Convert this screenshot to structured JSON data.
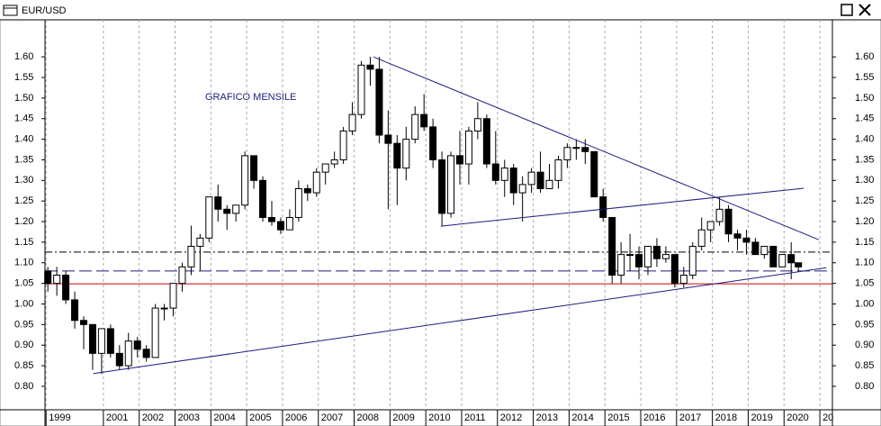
{
  "window_title": "EUR/USD",
  "chart_data": {
    "type": "candlestick",
    "annotation": "GRAFICO MENSILE",
    "x": [
      1999.45,
      1999.7,
      1999.95,
      2000.2,
      2000.45,
      2000.7,
      2000.95,
      2001.2,
      2001.45,
      2001.7,
      2001.95,
      2002.2,
      2002.45,
      2002.7,
      2002.95,
      2003.2,
      2003.45,
      2003.7,
      2003.95,
      2004.2,
      2004.45,
      2004.7,
      2004.95,
      2005.2,
      2005.45,
      2005.7,
      2005.95,
      2006.2,
      2006.45,
      2006.7,
      2006.95,
      2007.2,
      2007.45,
      2007.7,
      2007.95,
      2008.2,
      2008.45,
      2008.7,
      2008.95,
      2009.2,
      2009.45,
      2009.7,
      2009.95,
      2010.2,
      2010.45,
      2010.7,
      2010.95,
      2011.2,
      2011.45,
      2011.7,
      2011.95,
      2012.2,
      2012.45,
      2012.7,
      2012.95,
      2013.2,
      2013.45,
      2013.7,
      2013.95,
      2014.2,
      2014.45,
      2014.7,
      2014.95,
      2015.2,
      2015.45,
      2015.7,
      2015.95,
      2016.2,
      2016.45,
      2016.7,
      2016.95,
      2017.2,
      2017.45,
      2017.7,
      2017.95,
      2018.2,
      2018.45,
      2018.7,
      2018.95,
      2019.2,
      2019.45,
      2019.7,
      2019.95,
      2020.2,
      2020.4
    ],
    "open": [
      1.08,
      1.05,
      1.07,
      1.01,
      0.96,
      0.95,
      0.88,
      0.94,
      0.88,
      0.85,
      0.91,
      0.89,
      0.87,
      0.99,
      0.99,
      1.05,
      1.09,
      1.14,
      1.16,
      1.26,
      1.23,
      1.22,
      1.24,
      1.36,
      1.3,
      1.21,
      1.2,
      1.18,
      1.21,
      1.28,
      1.27,
      1.32,
      1.34,
      1.35,
      1.42,
      1.46,
      1.58,
      1.57,
      1.41,
      1.39,
      1.33,
      1.4,
      1.46,
      1.43,
      1.35,
      1.22,
      1.36,
      1.34,
      1.42,
      1.45,
      1.34,
      1.3,
      1.33,
      1.27,
      1.29,
      1.32,
      1.28,
      1.3,
      1.35,
      1.38,
      1.38,
      1.37,
      1.26,
      1.21,
      1.07,
      1.12,
      1.12,
      1.09,
      1.14,
      1.11,
      1.12,
      1.05,
      1.07,
      1.14,
      1.18,
      1.2,
      1.23,
      1.17,
      1.16,
      1.15,
      1.12,
      1.14,
      1.09,
      1.12,
      1.1
    ],
    "high": [
      1.09,
      1.09,
      1.08,
      1.03,
      0.97,
      0.95,
      0.94,
      0.95,
      0.9,
      0.93,
      0.92,
      0.9,
      1.0,
      1.0,
      1.05,
      1.1,
      1.19,
      1.17,
      1.26,
      1.29,
      1.24,
      1.24,
      1.37,
      1.36,
      1.31,
      1.25,
      1.21,
      1.23,
      1.3,
      1.29,
      1.33,
      1.34,
      1.37,
      1.43,
      1.49,
      1.59,
      1.6,
      1.6,
      1.47,
      1.41,
      1.43,
      1.48,
      1.51,
      1.45,
      1.37,
      1.37,
      1.42,
      1.43,
      1.49,
      1.46,
      1.42,
      1.35,
      1.34,
      1.31,
      1.33,
      1.37,
      1.34,
      1.36,
      1.39,
      1.4,
      1.4,
      1.37,
      1.28,
      1.21,
      1.15,
      1.17,
      1.14,
      1.14,
      1.16,
      1.14,
      1.12,
      1.09,
      1.15,
      1.21,
      1.2,
      1.26,
      1.24,
      1.18,
      1.18,
      1.16,
      1.14,
      1.14,
      1.12,
      1.15,
      1.1
    ],
    "low": [
      1.03,
      1.02,
      1.0,
      0.94,
      0.89,
      0.84,
      0.83,
      0.87,
      0.84,
      0.84,
      0.87,
      0.86,
      0.87,
      0.96,
      0.97,
      1.03,
      1.07,
      1.08,
      1.15,
      1.2,
      1.18,
      1.2,
      1.23,
      1.28,
      1.2,
      1.19,
      1.17,
      1.18,
      1.2,
      1.25,
      1.26,
      1.29,
      1.33,
      1.34,
      1.41,
      1.45,
      1.53,
      1.39,
      1.23,
      1.24,
      1.3,
      1.39,
      1.42,
      1.33,
      1.19,
      1.21,
      1.29,
      1.29,
      1.4,
      1.33,
      1.29,
      1.26,
      1.24,
      1.2,
      1.27,
      1.27,
      1.28,
      1.28,
      1.33,
      1.35,
      1.34,
      1.26,
      1.2,
      1.05,
      1.05,
      1.08,
      1.06,
      1.07,
      1.09,
      1.1,
      1.04,
      1.04,
      1.06,
      1.13,
      1.15,
      1.19,
      1.15,
      1.13,
      1.12,
      1.12,
      1.11,
      1.09,
      1.09,
      1.06,
      1.08
    ],
    "close": [
      1.05,
      1.07,
      1.01,
      0.96,
      0.95,
      0.88,
      0.94,
      0.88,
      0.85,
      0.91,
      0.89,
      0.87,
      0.99,
      0.99,
      1.05,
      1.09,
      1.14,
      1.16,
      1.26,
      1.23,
      1.22,
      1.24,
      1.36,
      1.3,
      1.21,
      1.2,
      1.18,
      1.21,
      1.28,
      1.27,
      1.32,
      1.34,
      1.35,
      1.42,
      1.46,
      1.58,
      1.57,
      1.41,
      1.39,
      1.33,
      1.4,
      1.46,
      1.43,
      1.35,
      1.22,
      1.36,
      1.34,
      1.42,
      1.45,
      1.34,
      1.3,
      1.33,
      1.27,
      1.29,
      1.32,
      1.28,
      1.3,
      1.35,
      1.38,
      1.38,
      1.37,
      1.26,
      1.21,
      1.07,
      1.12,
      1.12,
      1.09,
      1.14,
      1.11,
      1.12,
      1.05,
      1.07,
      1.14,
      1.18,
      1.2,
      1.23,
      1.17,
      1.16,
      1.15,
      1.12,
      1.14,
      1.09,
      1.12,
      1.1,
      1.09
    ],
    "lines": [
      {
        "x1": 2008.54,
        "y1": 1.6,
        "x2": 2020.97,
        "y2": 1.156,
        "color": "#1c1c80",
        "style": "solid"
      },
      {
        "x1": 2010.42,
        "y1": 1.189,
        "x2": 2020.55,
        "y2": 1.281,
        "color": "#1c1c80",
        "style": "solid"
      },
      {
        "x1": 2000.72,
        "y1": 0.831,
        "x2": 2021.18,
        "y2": 1.088,
        "color": "#1c1c80",
        "style": "solid"
      }
    ],
    "levels": [
      {
        "value": 1.126,
        "color": "#000000",
        "style": "dashdot"
      },
      {
        "value": 1.08,
        "color": "#1c1c80",
        "style": "dashed"
      },
      {
        "value": 1.049,
        "color": "#cc0000",
        "style": "solid"
      }
    ],
    "xlim": [
      1999.37,
      2021.35
    ],
    "xticks": [
      {
        "value": 1999.4,
        "label": "1999"
      },
      2001,
      2002,
      2003,
      2004,
      2005,
      2006,
      2007,
      2008,
      2009,
      2010,
      2011,
      2012,
      2013,
      2014,
      2015,
      2016,
      2017,
      2018,
      2019,
      2020,
      {
        "value": 2021,
        "label": "20"
      }
    ],
    "ylim": [
      0.743,
      1.69
    ],
    "yticks": [
      {
        "value": 0.8,
        "label": "0.80"
      },
      {
        "value": 0.85,
        "label": "0.85"
      },
      {
        "value": 0.9,
        "label": "0.90"
      },
      {
        "value": 0.95,
        "label": "0.95"
      },
      {
        "value": 1.0,
        "label": "1.00"
      },
      {
        "value": 1.05,
        "label": "1.05"
      },
      {
        "value": 1.1,
        "label": "1.10"
      },
      {
        "value": 1.15,
        "label": "1.15"
      },
      {
        "value": 1.2,
        "label": "1.20"
      },
      {
        "value": 1.25,
        "label": "1.25"
      },
      {
        "value": 1.3,
        "label": "1.30"
      },
      {
        "value": 1.35,
        "label": "1.35"
      },
      {
        "value": 1.4,
        "label": "1.40"
      },
      {
        "value": 1.45,
        "label": "1.45"
      },
      {
        "value": 1.5,
        "label": "1.50"
      },
      {
        "value": 1.55,
        "label": "1.55"
      },
      {
        "value": 1.6,
        "label": "1.60"
      }
    ],
    "grid": true
  }
}
